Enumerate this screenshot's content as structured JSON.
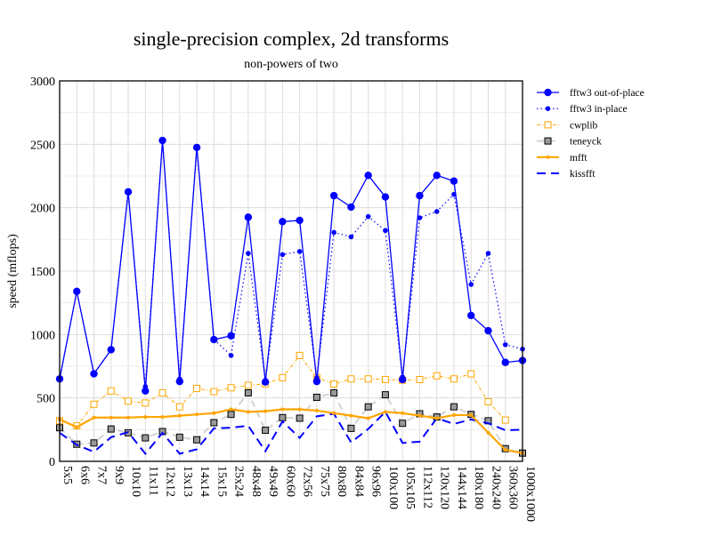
{
  "chart_data": {
    "type": "line",
    "title": "single-precision complex, 2d transforms",
    "subtitle": "non-powers of two",
    "xlabel": "",
    "ylabel": "speed (mflops)",
    "ylim": [
      0,
      3000
    ],
    "yticks": [
      0,
      500,
      1000,
      1500,
      2000,
      2500,
      3000
    ],
    "grid": true,
    "legend_position": "right",
    "categories": [
      "5x5",
      "6x6",
      "7x7",
      "9x9",
      "10x10",
      "11x11",
      "12x12",
      "13x13",
      "14x14",
      "15x15",
      "25x24",
      "48x48",
      "49x49",
      "60x60",
      "72x56",
      "75x75",
      "80x80",
      "84x84",
      "96x96",
      "100x100",
      "105x105",
      "112x112",
      "120x120",
      "144x144",
      "180x180",
      "240x240",
      "360x360",
      "1000x1000"
    ],
    "series": [
      {
        "name": "fftw3 out-of-place",
        "color": "#0000ff",
        "style": "solid-bigdot",
        "values": [
          650,
          1340,
          690,
          880,
          2125,
          555,
          2530,
          630,
          2475,
          960,
          990,
          1925,
          625,
          1890,
          1900,
          630,
          2095,
          2005,
          2255,
          2085,
          645,
          2095,
          2255,
          2210,
          1150,
          1030,
          780,
          795
        ]
      },
      {
        "name": "fftw3 in-place",
        "color": "#0000ff",
        "style": "dotted-dot",
        "values": [
          650,
          1340,
          690,
          880,
          2125,
          590,
          2530,
          650,
          2475,
          960,
          835,
          1640,
          640,
          1630,
          1655,
          660,
          1805,
          1770,
          1930,
          1820,
          665,
          1920,
          1970,
          2105,
          1395,
          1640,
          920,
          885
        ]
      },
      {
        "name": "cwplib",
        "color": "#ffa500",
        "style": "dashdot-square",
        "values": [
          320,
          280,
          450,
          555,
          475,
          460,
          540,
          430,
          575,
          550,
          580,
          600,
          610,
          660,
          835,
          660,
          610,
          650,
          650,
          645,
          640,
          645,
          675,
          650,
          690,
          470,
          325,
          null
        ]
      },
      {
        "name": "teneyck",
        "color": "#d3d3d3",
        "style": "dash-blacksquare",
        "values": [
          265,
          135,
          145,
          255,
          225,
          185,
          235,
          190,
          170,
          305,
          370,
          540,
          245,
          345,
          340,
          505,
          540,
          260,
          430,
          525,
          300,
          375,
          350,
          430,
          370,
          320,
          100,
          65
        ]
      },
      {
        "name": "mfft",
        "color": "#ffa500",
        "style": "thick-smalldot",
        "values": [
          330,
          270,
          345,
          345,
          345,
          350,
          350,
          360,
          370,
          380,
          410,
          390,
          395,
          410,
          410,
          400,
          380,
          360,
          340,
          390,
          380,
          360,
          340,
          365,
          365,
          225,
          90,
          65
        ]
      },
      {
        "name": "kissfft",
        "color": "#0000ff",
        "style": "longdash",
        "values": [
          225,
          130,
          75,
          190,
          230,
          60,
          225,
          60,
          95,
          260,
          265,
          280,
          80,
          315,
          185,
          355,
          375,
          150,
          255,
          390,
          145,
          155,
          340,
          295,
          330,
          300,
          245,
          250
        ]
      }
    ]
  }
}
